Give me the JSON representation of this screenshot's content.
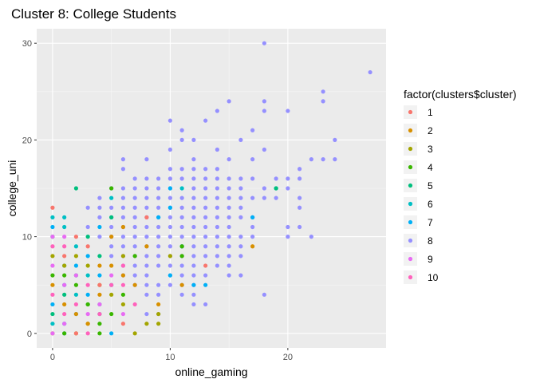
{
  "chart_data": {
    "type": "scatter",
    "title": "Cluster 8: College Students",
    "xlabel": "online_gaming",
    "ylabel": "college_uni",
    "xlim": [
      -1.35,
      28.35
    ],
    "ylim": [
      -1.5,
      31.5
    ],
    "x_ticks": [
      0,
      10,
      20
    ],
    "y_ticks": [
      0,
      10,
      20,
      30
    ],
    "x_tick_labels": [
      "0",
      "10",
      "20"
    ],
    "y_tick_labels": [
      "0",
      "10",
      "20",
      "30"
    ],
    "grid": true,
    "panel_background": "#ebebeb",
    "legend": {
      "title": "factor(clusters$cluster)",
      "position": "right",
      "entries": [
        {
          "label": "1",
          "color": "#F8766D"
        },
        {
          "label": "2",
          "color": "#D89000"
        },
        {
          "label": "3",
          "color": "#A3A500"
        },
        {
          "label": "4",
          "color": "#39B600"
        },
        {
          "label": "5",
          "color": "#00BF7D"
        },
        {
          "label": "6",
          "color": "#00BFC4"
        },
        {
          "label": "7",
          "color": "#00B0F6"
        },
        {
          "label": "8",
          "color": "#9590FF"
        },
        {
          "label": "9",
          "color": "#E76BF3"
        },
        {
          "label": "10",
          "color": "#FF62BC"
        }
      ]
    },
    "series": [
      {
        "name": "8",
        "color": "#9590FF",
        "points": [
          [
            18,
            30
          ],
          [
            27,
            27
          ],
          [
            23,
            25
          ],
          [
            15,
            24
          ],
          [
            18,
            24
          ],
          [
            23,
            24
          ],
          [
            14,
            23
          ],
          [
            18,
            23
          ],
          [
            20,
            23
          ],
          [
            10,
            22
          ],
          [
            13,
            22
          ],
          [
            11,
            21
          ],
          [
            17,
            21
          ],
          [
            11,
            20
          ],
          [
            12,
            20
          ],
          [
            16,
            20
          ],
          [
            24,
            20
          ],
          [
            10,
            19
          ],
          [
            14,
            19
          ],
          [
            18,
            19
          ],
          [
            12,
            18
          ],
          [
            6,
            18
          ],
          [
            8,
            18
          ],
          [
            15,
            18
          ],
          [
            17,
            18
          ],
          [
            22,
            18
          ],
          [
            23,
            18
          ],
          [
            24,
            18
          ],
          [
            6,
            17
          ],
          [
            10,
            17
          ],
          [
            11,
            17
          ],
          [
            12,
            17
          ],
          [
            13,
            17
          ],
          [
            14,
            17
          ],
          [
            21,
            17
          ],
          [
            7,
            16
          ],
          [
            8,
            16
          ],
          [
            9,
            16
          ],
          [
            10,
            16
          ],
          [
            11,
            16
          ],
          [
            12,
            16
          ],
          [
            13,
            16
          ],
          [
            14,
            16
          ],
          [
            15,
            16
          ],
          [
            16,
            16
          ],
          [
            17,
            16
          ],
          [
            19,
            16
          ],
          [
            20,
            16
          ],
          [
            21,
            16
          ],
          [
            5,
            15
          ],
          [
            6,
            15
          ],
          [
            7,
            15
          ],
          [
            8,
            15
          ],
          [
            9,
            15
          ],
          [
            10,
            15
          ],
          [
            12,
            15
          ],
          [
            13,
            15
          ],
          [
            14,
            15
          ],
          [
            15,
            15
          ],
          [
            16,
            15
          ],
          [
            18,
            15
          ],
          [
            20,
            15
          ],
          [
            4,
            14
          ],
          [
            6,
            14
          ],
          [
            7,
            14
          ],
          [
            8,
            14
          ],
          [
            9,
            14
          ],
          [
            10,
            14
          ],
          [
            11,
            14
          ],
          [
            12,
            14
          ],
          [
            13,
            14
          ],
          [
            14,
            14
          ],
          [
            15,
            14
          ],
          [
            16,
            14
          ],
          [
            17,
            14
          ],
          [
            18,
            14
          ],
          [
            19,
            14
          ],
          [
            21,
            14
          ],
          [
            3,
            13
          ],
          [
            4,
            13
          ],
          [
            5,
            13
          ],
          [
            6,
            13
          ],
          [
            7,
            13
          ],
          [
            8,
            13
          ],
          [
            9,
            13
          ],
          [
            10,
            13
          ],
          [
            11,
            13
          ],
          [
            12,
            13
          ],
          [
            13,
            13
          ],
          [
            14,
            13
          ],
          [
            15,
            13
          ],
          [
            16,
            13
          ],
          [
            21,
            13
          ],
          [
            4,
            12
          ],
          [
            5,
            12
          ],
          [
            6,
            12
          ],
          [
            7,
            12
          ],
          [
            8,
            12
          ],
          [
            9,
            12
          ],
          [
            10,
            12
          ],
          [
            11,
            12
          ],
          [
            12,
            12
          ],
          [
            13,
            12
          ],
          [
            14,
            12
          ],
          [
            15,
            12
          ],
          [
            16,
            12
          ],
          [
            17,
            12
          ],
          [
            3,
            11
          ],
          [
            5,
            11
          ],
          [
            6,
            11
          ],
          [
            7,
            11
          ],
          [
            8,
            11
          ],
          [
            9,
            11
          ],
          [
            10,
            11
          ],
          [
            11,
            11
          ],
          [
            12,
            11
          ],
          [
            13,
            11
          ],
          [
            14,
            11
          ],
          [
            15,
            11
          ],
          [
            17,
            11
          ],
          [
            20,
            11
          ],
          [
            21,
            11
          ],
          [
            4,
            10
          ],
          [
            5,
            10
          ],
          [
            6,
            10
          ],
          [
            7,
            10
          ],
          [
            8,
            10
          ],
          [
            9,
            10
          ],
          [
            10,
            10
          ],
          [
            11,
            10
          ],
          [
            12,
            10
          ],
          [
            13,
            10
          ],
          [
            14,
            10
          ],
          [
            15,
            10
          ],
          [
            16,
            10
          ],
          [
            17,
            10
          ],
          [
            20,
            10
          ],
          [
            22,
            10
          ],
          [
            5,
            9
          ],
          [
            6,
            9
          ],
          [
            7,
            9
          ],
          [
            8,
            9
          ],
          [
            9,
            9
          ],
          [
            10,
            9
          ],
          [
            11,
            9
          ],
          [
            12,
            9
          ],
          [
            13,
            9
          ],
          [
            14,
            9
          ],
          [
            15,
            9
          ],
          [
            16,
            9
          ],
          [
            5,
            8
          ],
          [
            6,
            8
          ],
          [
            7,
            8
          ],
          [
            8,
            8
          ],
          [
            9,
            8
          ],
          [
            10,
            8
          ],
          [
            11,
            8
          ],
          [
            12,
            8
          ],
          [
            13,
            8
          ],
          [
            14,
            8
          ],
          [
            15,
            8
          ],
          [
            16,
            8
          ],
          [
            6,
            7
          ],
          [
            7,
            7
          ],
          [
            8,
            7
          ],
          [
            9,
            7
          ],
          [
            10,
            7
          ],
          [
            11,
            7
          ],
          [
            12,
            7
          ],
          [
            14,
            7
          ],
          [
            15,
            7
          ],
          [
            6,
            6
          ],
          [
            7,
            6
          ],
          [
            8,
            6
          ],
          [
            10,
            6
          ],
          [
            11,
            6
          ],
          [
            12,
            6
          ],
          [
            13,
            6
          ],
          [
            15,
            6
          ],
          [
            16,
            6
          ],
          [
            7,
            5
          ],
          [
            8,
            5
          ],
          [
            9,
            5
          ],
          [
            10,
            5
          ],
          [
            11,
            5
          ],
          [
            12,
            5
          ],
          [
            8,
            4
          ],
          [
            9,
            4
          ],
          [
            11,
            4
          ],
          [
            12,
            4
          ],
          [
            18,
            4
          ],
          [
            12,
            3
          ],
          [
            13,
            3
          ],
          [
            8,
            2
          ],
          [
            9,
            2
          ]
        ]
      },
      {
        "name": "7",
        "color": "#00B0F6",
        "points": [
          [
            0,
            11
          ],
          [
            4,
            11
          ],
          [
            3,
            8
          ],
          [
            2,
            7
          ],
          [
            4,
            6
          ],
          [
            1,
            5
          ],
          [
            3,
            4
          ],
          [
            0,
            3
          ],
          [
            2,
            2
          ],
          [
            1,
            1
          ],
          [
            5,
            0
          ],
          [
            10,
            15
          ],
          [
            10,
            13
          ],
          [
            9,
            12
          ],
          [
            11,
            9
          ],
          [
            10,
            6
          ],
          [
            12,
            5
          ],
          [
            13,
            5
          ],
          [
            17,
            12
          ]
        ]
      },
      {
        "name": "6",
        "color": "#00BFC4",
        "points": [
          [
            0,
            12
          ],
          [
            1,
            12
          ],
          [
            1,
            11
          ],
          [
            5,
            14
          ],
          [
            2,
            9
          ],
          [
            1,
            7
          ],
          [
            3,
            6
          ],
          [
            5,
            5
          ],
          [
            2,
            4
          ],
          [
            4,
            3
          ],
          [
            0,
            1
          ],
          [
            1,
            0
          ],
          [
            11,
            15
          ],
          [
            19,
            15
          ],
          [
            4,
            2
          ]
        ]
      },
      {
        "name": "5",
        "color": "#00BF7D",
        "points": [
          [
            2,
            15
          ],
          [
            0,
            10
          ],
          [
            3,
            10
          ],
          [
            5,
            12
          ],
          [
            2,
            6
          ],
          [
            1,
            4
          ],
          [
            3,
            3
          ],
          [
            0,
            2
          ],
          [
            4,
            8
          ],
          [
            19,
            15
          ]
        ]
      },
      {
        "name": "4",
        "color": "#39B600",
        "points": [
          [
            5,
            15
          ],
          [
            0,
            6
          ],
          [
            1,
            6
          ],
          [
            2,
            5
          ],
          [
            3,
            3
          ],
          [
            4,
            1
          ],
          [
            5,
            2
          ],
          [
            1,
            0
          ],
          [
            6,
            4
          ],
          [
            11,
            9
          ],
          [
            11,
            8
          ],
          [
            7,
            8
          ],
          [
            4,
            0
          ]
        ]
      },
      {
        "name": "3",
        "color": "#A3A500",
        "points": [
          [
            0,
            8
          ],
          [
            1,
            7
          ],
          [
            2,
            8
          ],
          [
            3,
            7
          ],
          [
            4,
            5
          ],
          [
            5,
            4
          ],
          [
            6,
            3
          ],
          [
            7,
            0
          ],
          [
            9,
            2
          ],
          [
            9,
            1
          ],
          [
            8,
            1
          ],
          [
            3,
            1
          ],
          [
            2,
            0
          ],
          [
            6,
            8
          ],
          [
            10,
            8
          ]
        ]
      },
      {
        "name": "2",
        "color": "#D89000",
        "points": [
          [
            5,
            10
          ],
          [
            6,
            11
          ],
          [
            0,
            5
          ],
          [
            1,
            3
          ],
          [
            2,
            2
          ],
          [
            3,
            1
          ],
          [
            4,
            4
          ],
          [
            5,
            7
          ],
          [
            6,
            6
          ],
          [
            7,
            5
          ],
          [
            8,
            9
          ],
          [
            9,
            3
          ],
          [
            11,
            5
          ],
          [
            17,
            9
          ],
          [
            4,
            7
          ],
          [
            0,
            0
          ]
        ]
      },
      {
        "name": "1",
        "color": "#F8766D",
        "points": [
          [
            0,
            13
          ],
          [
            2,
            10
          ],
          [
            1,
            8
          ],
          [
            3,
            9
          ],
          [
            2,
            0
          ],
          [
            8,
            12
          ],
          [
            13,
            7
          ],
          [
            4,
            5
          ],
          [
            6,
            1
          ]
        ]
      },
      {
        "name": "10",
        "color": "#FF62BC",
        "points": [
          [
            0,
            9
          ],
          [
            1,
            9
          ],
          [
            3,
            5
          ],
          [
            2,
            3
          ],
          [
            0,
            4
          ],
          [
            1,
            2
          ],
          [
            3,
            0
          ],
          [
            4,
            2
          ],
          [
            6,
            7
          ],
          [
            7,
            3
          ],
          [
            5,
            5
          ],
          [
            6,
            5
          ]
        ]
      },
      {
        "name": "9",
        "color": "#E76BF3",
        "points": [
          [
            0,
            10
          ],
          [
            1,
            10
          ],
          [
            0,
            7
          ],
          [
            1,
            5
          ],
          [
            2,
            6
          ],
          [
            3,
            2
          ],
          [
            4,
            3
          ],
          [
            0,
            0
          ],
          [
            1,
            1
          ],
          [
            5,
            6
          ],
          [
            6,
            2
          ]
        ]
      }
    ]
  }
}
